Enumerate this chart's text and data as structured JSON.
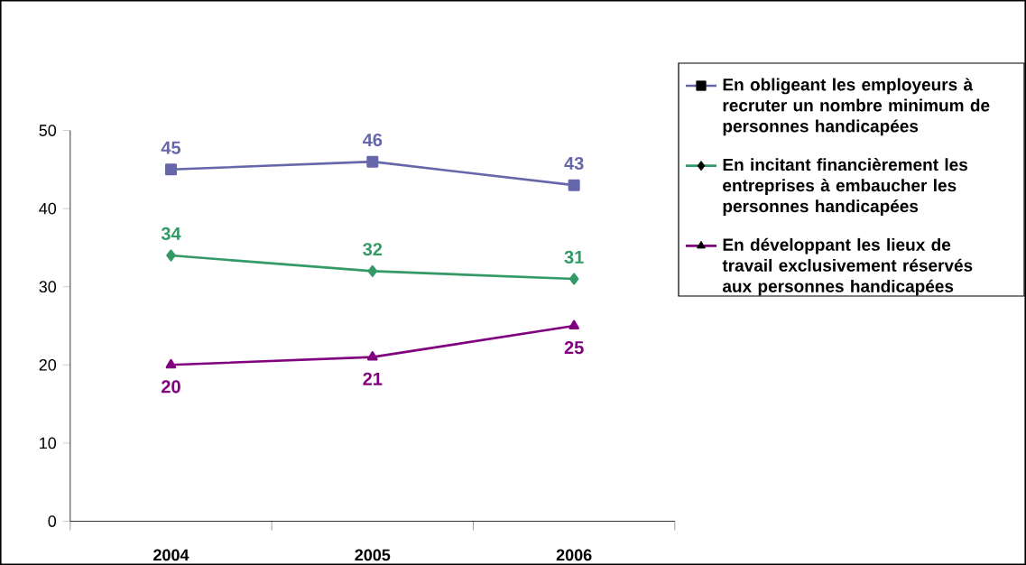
{
  "chart_data": {
    "type": "line",
    "categories": [
      "2004",
      "2005",
      "2006"
    ],
    "series": [
      {
        "name": "En obligeant les employeurs à recruter un nombre minimum de personnes handicapées",
        "color": "#6666aa",
        "marker": "square",
        "values": [
          45,
          46,
          43
        ]
      },
      {
        "name": "En incitant financièrement les entreprises à embaucher les personnes handicapées",
        "color": "#339966",
        "marker": "diamond",
        "values": [
          34,
          32,
          31
        ]
      },
      {
        "name": "En développant les lieux de travail exclusivement réservés aux personnes handicapées",
        "color": "#800080",
        "marker": "triangle",
        "values": [
          20,
          21,
          25
        ]
      }
    ],
    "ylim": [
      0,
      50
    ],
    "yticks": [
      0,
      10,
      20,
      30,
      40,
      50
    ],
    "data_labels": true,
    "legend": "right",
    "grid": false
  }
}
